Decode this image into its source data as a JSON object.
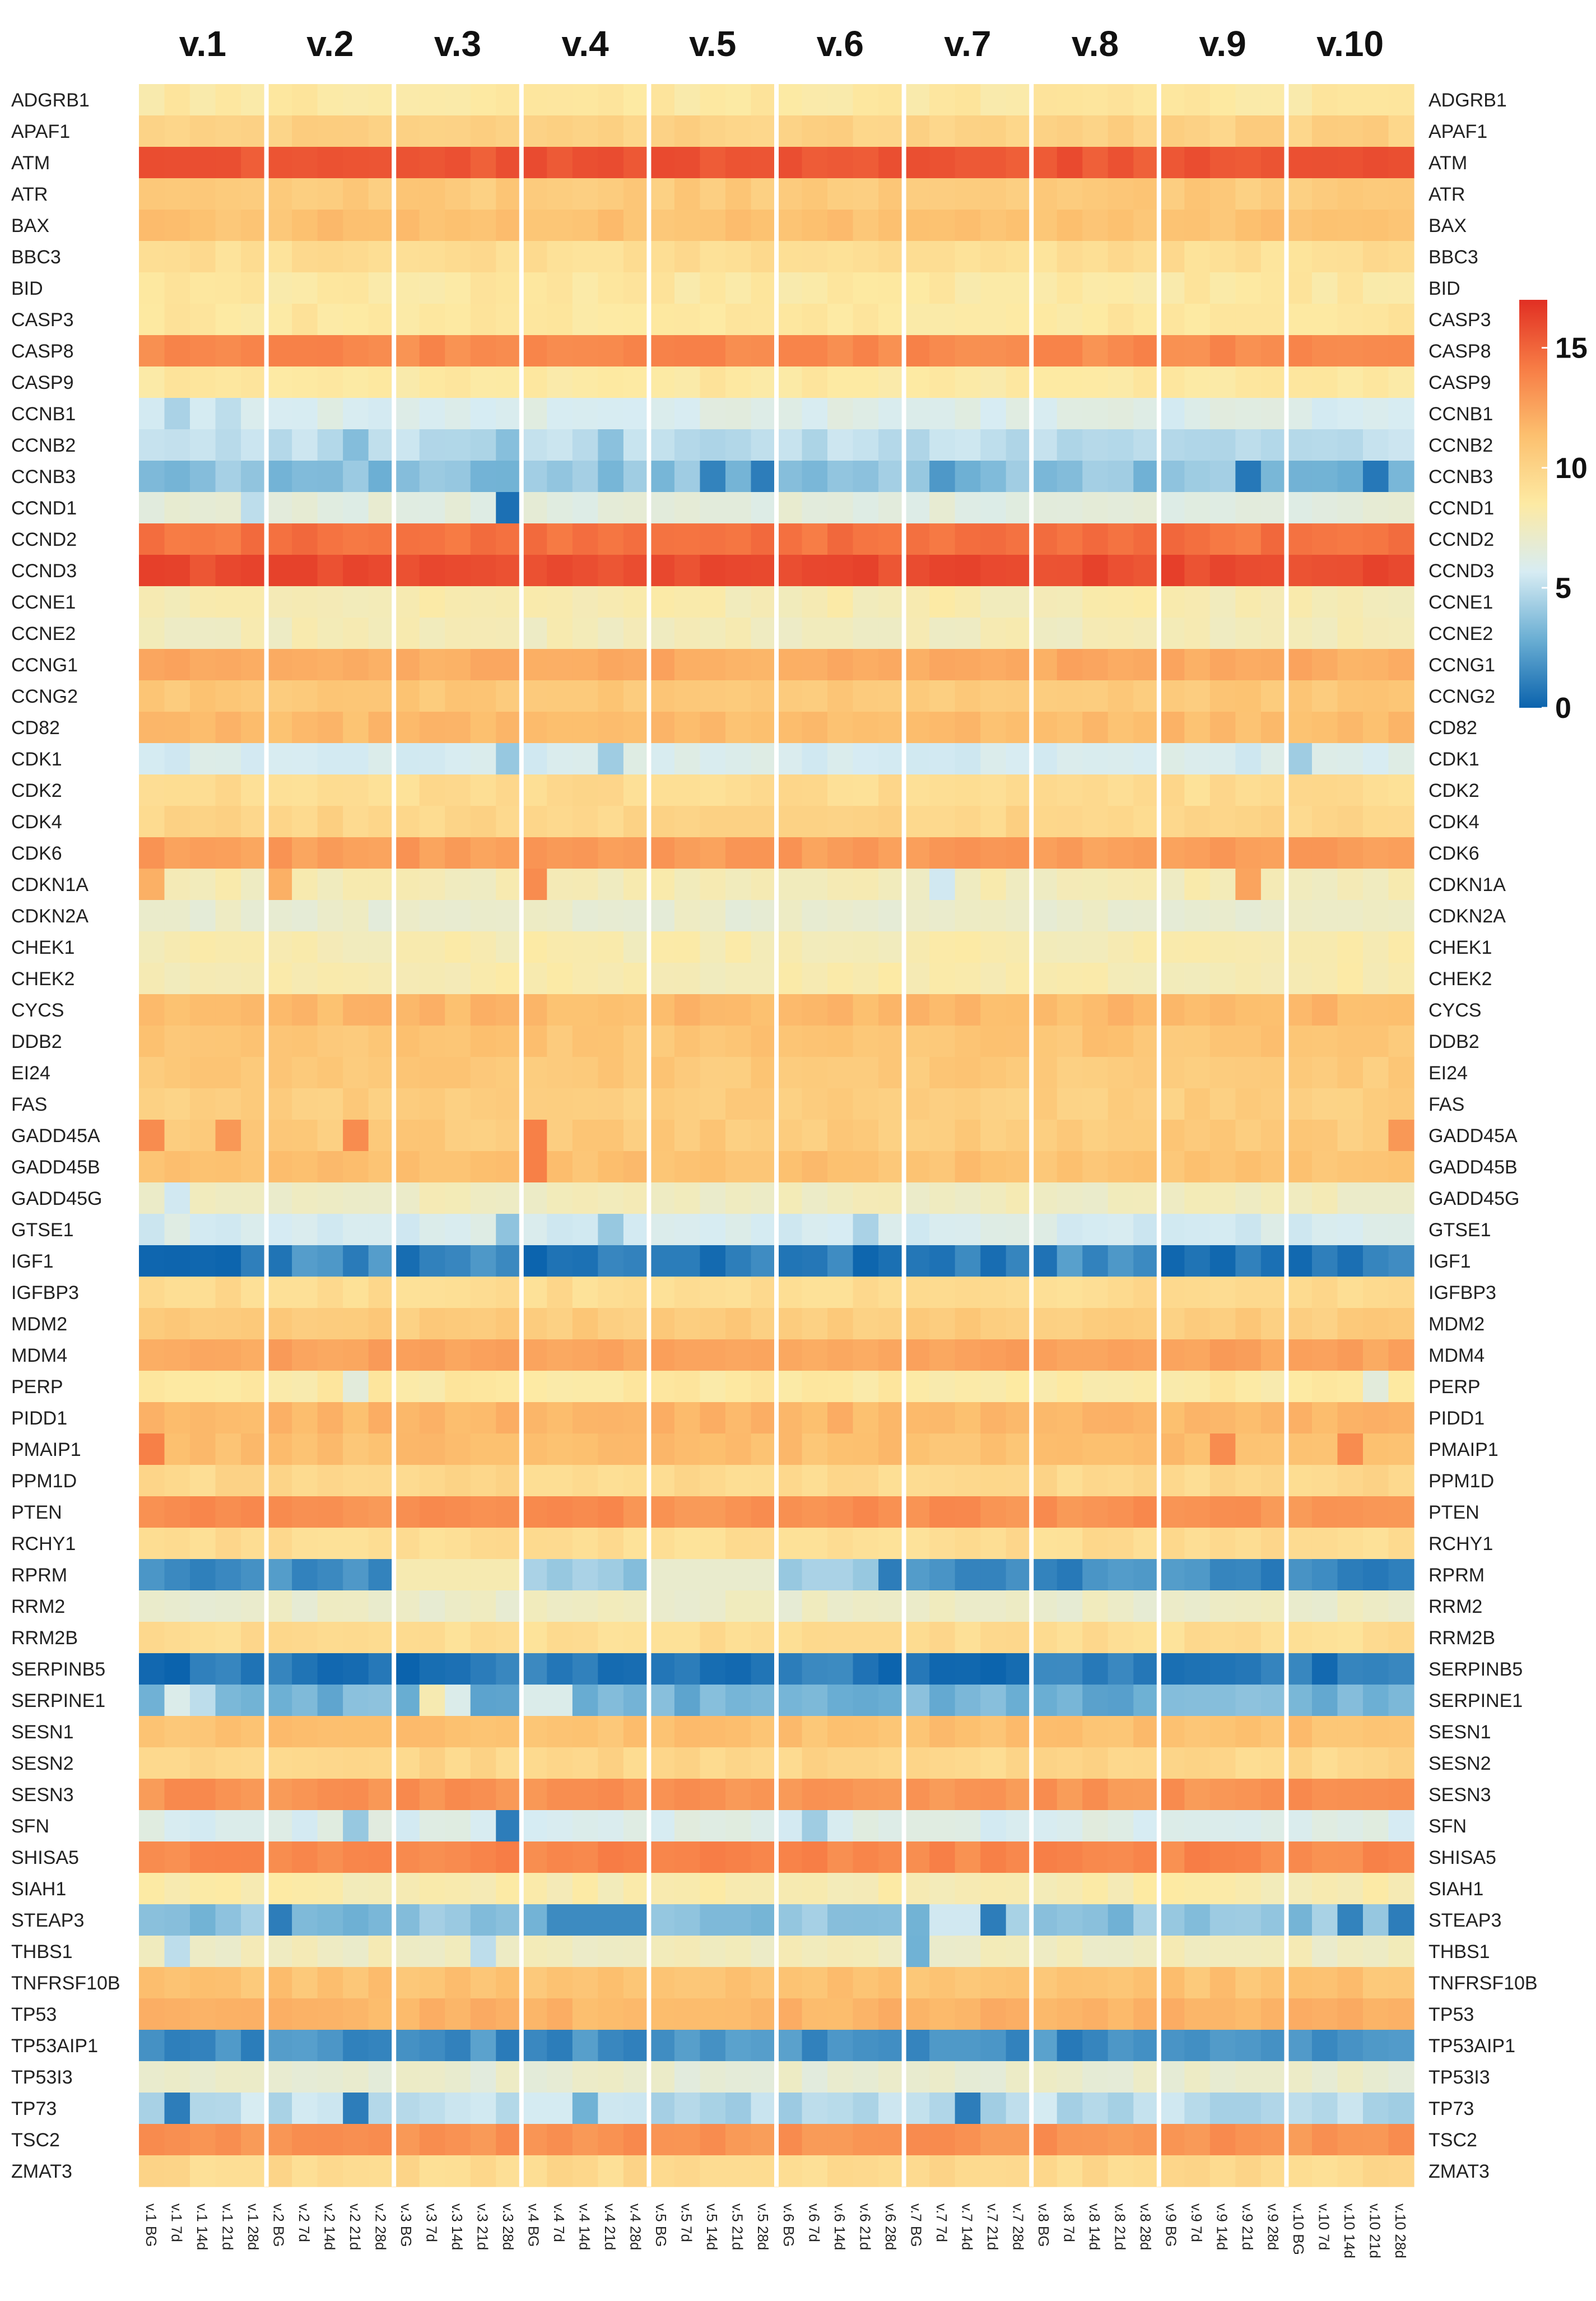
{
  "chart_data": {
    "type": "heatmap",
    "title": "",
    "value_range": [
      0,
      17
    ],
    "colorbar": {
      "ticks": [
        0,
        5,
        10,
        15
      ],
      "tick_labels": [
        "0",
        "5",
        "10",
        "15"
      ],
      "colors": [
        "#0b63ad",
        "#6aaed3",
        "#d7ecf3",
        "#fdeaa3",
        "#fcc06f",
        "#f77c45",
        "#e12f23"
      ]
    },
    "group_labels": [
      "v.1",
      "v.2",
      "v.3",
      "v.4",
      "v.5",
      "v.6",
      "v.7",
      "v.8",
      "v.9",
      "v.10"
    ],
    "time_points": [
      "BG",
      "7d",
      "14d",
      "21d",
      "28d"
    ],
    "column_labels": [
      "v.1 BG",
      "v.1 7d",
      "v.1 14d",
      "v.1 21d",
      "v.1 28d",
      "v.2 BG",
      "v.2 7d",
      "v.2 14d",
      "v.2 21d",
      "v.2 28d",
      "v.3 BG",
      "v.3 7d",
      "v.3 14d",
      "v.3 21d",
      "v.3 28d",
      "v.4 BG",
      "v.4 7d",
      "v.4 14d",
      "v.4 21d",
      "v.4 28d",
      "v.5 BG",
      "v.5 7d",
      "v.5 14d",
      "v.5 21d",
      "v.5 28d",
      "v.6 BG",
      "v.6 7d",
      "v.6 14d",
      "v.6 21d",
      "v.6 28d",
      "v.7 BG",
      "v.7 7d",
      "v.7 14d",
      "v.7 21d",
      "v.7 28d",
      "v.8 BG",
      "v.8 7d",
      "v.8 14d",
      "v.8 21d",
      "v.8 28d",
      "v.9 BG",
      "v.9 7d",
      "v.9 14d",
      "v.9 21d",
      "v.9 28d",
      "v.10 BG",
      "v.10 7d",
      "v.10 14d",
      "v.10 21d",
      "v.10 28d"
    ],
    "genes": [
      {
        "name": "ADGRB1",
        "base": 8.6,
        "overrides": {}
      },
      {
        "name": "APAF1",
        "base": 10.2,
        "overrides": {}
      },
      {
        "name": "ATM",
        "base": 15.6,
        "overrides": {}
      },
      {
        "name": "ATR",
        "base": 10.6,
        "overrides": {}
      },
      {
        "name": "BAX",
        "base": 11.2,
        "overrides": {}
      },
      {
        "name": "BBC3",
        "base": 9.3,
        "overrides": {}
      },
      {
        "name": "BID",
        "base": 8.6,
        "overrides": {}
      },
      {
        "name": "CASP3",
        "base": 8.7,
        "overrides": {}
      },
      {
        "name": "CASP8",
        "base": 13.6,
        "overrides": {}
      },
      {
        "name": "CASP9",
        "base": 8.6,
        "overrides": {}
      },
      {
        "name": "CCNB1",
        "base": 6.0,
        "overrides": {
          "1": 4.5,
          "3": 5.0
        }
      },
      {
        "name": "CCNB2",
        "base": 5.0,
        "overrides": {
          "8": 3.5,
          "14": 3.6,
          "18": 3.7
        }
      },
      {
        "name": "CCNB3",
        "base": 3.6,
        "overrides": {
          "22": 1.2,
          "24": 1.0,
          "43": 0.8,
          "48": 0.8,
          "31": 2.0
        }
      },
      {
        "name": "CCND1",
        "base": 6.5,
        "overrides": {
          "14": 0.5,
          "4": 5.0
        }
      },
      {
        "name": "CCND2",
        "base": 14.5,
        "overrides": {}
      },
      {
        "name": "CCND3",
        "base": 16.0,
        "overrides": {}
      },
      {
        "name": "CCNE1",
        "base": 8.0,
        "overrides": {}
      },
      {
        "name": "CCNE2",
        "base": 7.7,
        "overrides": {}
      },
      {
        "name": "CCNG1",
        "base": 12.2,
        "overrides": {}
      },
      {
        "name": "CCNG2",
        "base": 10.8,
        "overrides": {}
      },
      {
        "name": "CD82",
        "base": 11.5,
        "overrides": {}
      },
      {
        "name": "CDK1",
        "base": 5.8,
        "overrides": {
          "14": 4.0,
          "18": 4.2,
          "45": 4.2
        }
      },
      {
        "name": "CDK2",
        "base": 9.5,
        "overrides": {}
      },
      {
        "name": "CDK4",
        "base": 9.9,
        "overrides": {}
      },
      {
        "name": "CDK6",
        "base": 12.8,
        "overrides": {}
      },
      {
        "name": "CDKN1A",
        "base": 7.8,
        "overrides": {
          "0": 12.0,
          "5": 12.0,
          "15": 13.5,
          "43": 12.5,
          "31": 5.5
        }
      },
      {
        "name": "CDKN2A",
        "base": 7.0,
        "overrides": {}
      },
      {
        "name": "CHEK1",
        "base": 8.0,
        "overrides": {}
      },
      {
        "name": "CHEK2",
        "base": 8.0,
        "overrides": {}
      },
      {
        "name": "CYCS",
        "base": 11.6,
        "overrides": {}
      },
      {
        "name": "DDB2",
        "base": 11.0,
        "overrides": {}
      },
      {
        "name": "EI24",
        "base": 10.7,
        "overrides": {}
      },
      {
        "name": "FAS",
        "base": 10.4,
        "overrides": {}
      },
      {
        "name": "GADD45A",
        "base": 10.6,
        "overrides": {
          "0": 13.5,
          "3": 13.0,
          "8": 13.5,
          "15": 14.0,
          "49": 13.0
        }
      },
      {
        "name": "GADD45B",
        "base": 11.2,
        "overrides": {
          "15": 14.0
        }
      },
      {
        "name": "GADD45G",
        "base": 7.5,
        "overrides": {
          "1": 5.5
        }
      },
      {
        "name": "GTSE1",
        "base": 5.8,
        "overrides": {
          "14": 3.8,
          "18": 4.0,
          "28": 4.5
        }
      },
      {
        "name": "IGF1",
        "base": 0.8,
        "overrides": {
          "6": 2.2,
          "7": 2.0,
          "9": 2.2,
          "36": 2.3,
          "38": 2.0,
          "13": 2.0
        }
      },
      {
        "name": "IGFBP3",
        "base": 9.5,
        "overrides": {}
      },
      {
        "name": "MDM2",
        "base": 10.5,
        "overrides": {}
      },
      {
        "name": "MDM4",
        "base": 12.5,
        "overrides": {}
      },
      {
        "name": "PERP",
        "base": 8.5,
        "overrides": {
          "8": 6.5,
          "48": 6.5
        }
      },
      {
        "name": "PIDD1",
        "base": 11.7,
        "overrides": {}
      },
      {
        "name": "PMAIP1",
        "base": 11.3,
        "overrides": {
          "0": 14.0,
          "42": 13.5,
          "47": 13.5
        }
      },
      {
        "name": "PPM1D",
        "base": 9.7,
        "overrides": {}
      },
      {
        "name": "PTEN",
        "base": 13.3,
        "overrides": {}
      },
      {
        "name": "RCHY1",
        "base": 9.4,
        "overrides": {}
      },
      {
        "name": "RPRM",
        "base": 1.5,
        "overrides": {
          "10": 8.0,
          "11": 8.0,
          "12": 8.0,
          "13": 8.0,
          "14": 8.0,
          "20": 7.0,
          "21": 7.0,
          "22": 7.0,
          "23": 7.0,
          "24": 7.0,
          "15": 4.5,
          "16": 4.0,
          "17": 4.5,
          "18": 4.2,
          "19": 3.5,
          "25": 4.0,
          "26": 4.5,
          "27": 4.5,
          "28": 4.0,
          "29": 1.0
        }
      },
      {
        "name": "RRM2",
        "base": 7.2,
        "overrides": {}
      },
      {
        "name": "RRM2B",
        "base": 9.4,
        "overrides": {}
      },
      {
        "name": "SERPINB5",
        "base": 0.7,
        "overrides": {}
      },
      {
        "name": "SERPINE1",
        "base": 3.0,
        "overrides": {
          "1": 6.0,
          "2": 5.0,
          "11": 8.0,
          "12": 6.0,
          "15": 6.0,
          "16": 6.0
        }
      },
      {
        "name": "SESN1",
        "base": 11.2,
        "overrides": {}
      },
      {
        "name": "SESN2",
        "base": 9.8,
        "overrides": {}
      },
      {
        "name": "SESN3",
        "base": 13.2,
        "overrides": {}
      },
      {
        "name": "SFN",
        "base": 6.0,
        "overrides": {
          "14": 1.0,
          "8": 4.0,
          "26": 4.2
        }
      },
      {
        "name": "SHISA5",
        "base": 13.7,
        "overrides": {}
      },
      {
        "name": "SIAH1",
        "base": 8.1,
        "overrides": {}
      },
      {
        "name": "STEAP3",
        "base": 3.7,
        "overrides": {
          "5": 1.0,
          "16": 1.5,
          "17": 1.5,
          "18": 1.5,
          "19": 1.5,
          "33": 1.0,
          "47": 1.2,
          "49": 1.0,
          "31": 5.5,
          "32": 5.5
        }
      },
      {
        "name": "THBS1",
        "base": 7.5,
        "overrides": {
          "30": 3.0,
          "1": 5.0,
          "13": 5.0
        }
      },
      {
        "name": "TNFRSF10B",
        "base": 11.1,
        "overrides": {}
      },
      {
        "name": "TP53",
        "base": 11.8,
        "overrides": {}
      },
      {
        "name": "TP53AIP1",
        "base": 1.6,
        "overrides": {}
      },
      {
        "name": "TP53I3",
        "base": 6.9,
        "overrides": {}
      },
      {
        "name": "TP73",
        "base": 4.9,
        "overrides": {
          "1": 1.0,
          "8": 1.0,
          "32": 1.0,
          "17": 3.0
        }
      },
      {
        "name": "TSC2",
        "base": 13.2,
        "overrides": {}
      },
      {
        "name": "ZMAT3",
        "base": 9.6,
        "overrides": {}
      }
    ]
  }
}
